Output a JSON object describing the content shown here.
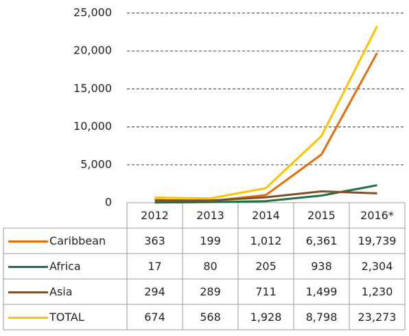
{
  "chart_data": {
    "type": "line",
    "categories": [
      "2012",
      "2013",
      "2014",
      "2015",
      "2016*"
    ],
    "series": [
      {
        "name": "Caribbean",
        "color": "#e46c0a",
        "values": [
          363,
          199,
          1012,
          6361,
          19739
        ],
        "value_labels": [
          "363",
          "199",
          "1,012",
          "6,361",
          "19,739"
        ]
      },
      {
        "name": "Africa",
        "color": "#1e7145",
        "values": [
          17,
          80,
          205,
          938,
          2304
        ],
        "value_labels": [
          "17",
          "80",
          "205",
          "938",
          "2,304"
        ]
      },
      {
        "name": "Asia",
        "color": "#7f4f27",
        "values": [
          294,
          289,
          711,
          1499,
          1230
        ],
        "value_labels": [
          "294",
          "289",
          "711",
          "1,499",
          "1,230"
        ]
      },
      {
        "name": "TOTAL",
        "color": "#ffc000",
        "values": [
          674,
          568,
          1928,
          8798,
          23273
        ],
        "value_labels": [
          "674",
          "568",
          "1,928",
          "8,798",
          "23,273"
        ]
      }
    ],
    "ylim": [
      0,
      25000
    ],
    "yticks": [
      0,
      {
        "value": 5000,
        "label": "5,000"
      },
      {
        "value": 10000,
        "label": "10,000"
      },
      {
        "value": 15000,
        "label": "15,000"
      },
      {
        "value": 20000,
        "label": "20,000"
      },
      {
        "value": 25000,
        "label": "25,000"
      }
    ],
    "grid": true,
    "data_table": true
  }
}
